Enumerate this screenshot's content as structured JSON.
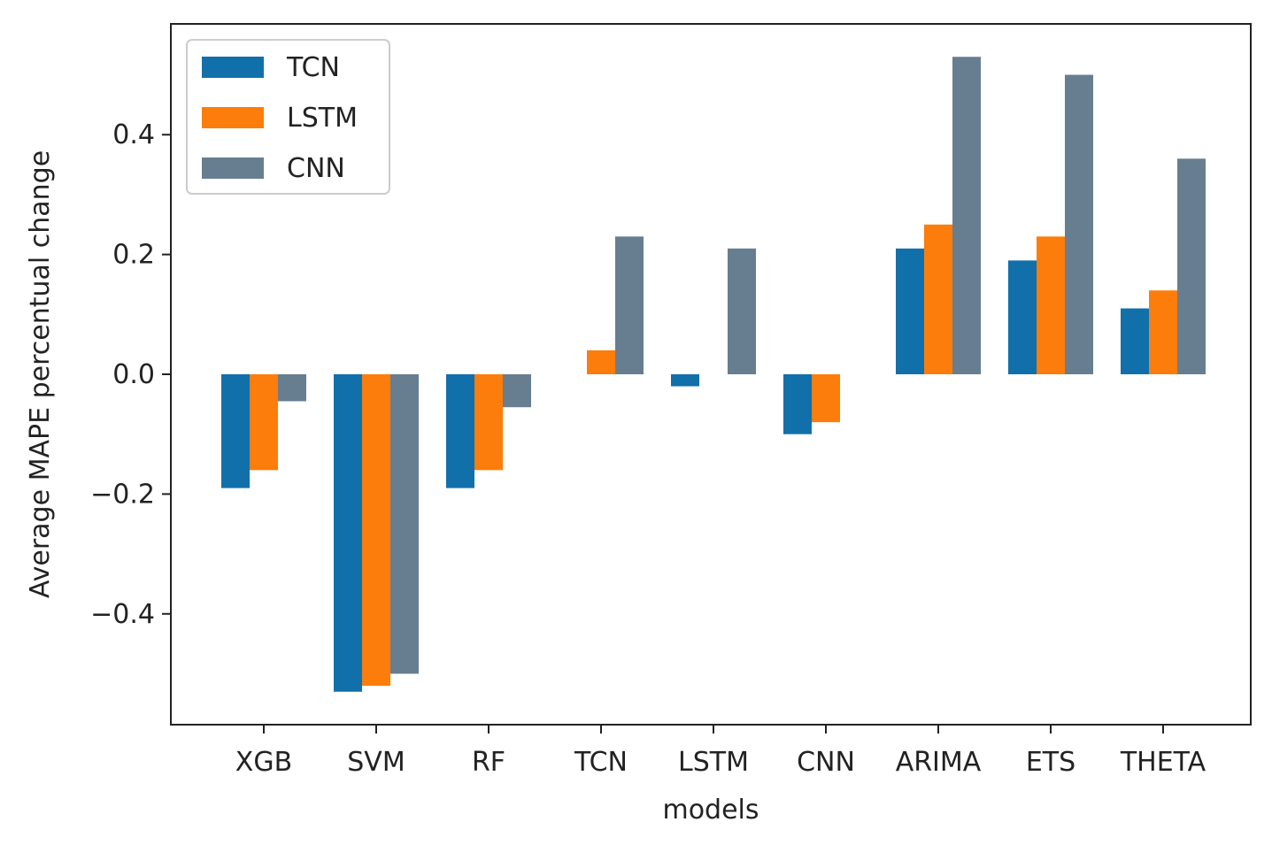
{
  "chart_data": {
    "type": "bar",
    "title": "",
    "xlabel": "models",
    "ylabel": "Average MAPE percentual change",
    "categories": [
      "XGB",
      "SVM",
      "RF",
      "TCN",
      "LSTM",
      "CNN",
      "ARIMA",
      "ETS",
      "THETA"
    ],
    "series": [
      {
        "name": "TCN",
        "color": "#1170aa",
        "values": [
          -0.19,
          -0.53,
          -0.19,
          0.0,
          -0.02,
          -0.1,
          0.21,
          0.19,
          0.11
        ]
      },
      {
        "name": "LSTM",
        "color": "#fc7d0b",
        "values": [
          -0.16,
          -0.52,
          -0.16,
          0.04,
          0.0,
          -0.08,
          0.25,
          0.23,
          0.14
        ]
      },
      {
        "name": "CNN",
        "color": "#667e90",
        "values": [
          -0.045,
          -0.5,
          -0.055,
          0.23,
          0.21,
          0.0,
          0.53,
          0.5,
          0.36
        ]
      }
    ],
    "ylim": [
      -0.585,
      0.585
    ],
    "yticks": [
      -0.4,
      -0.2,
      0.0,
      0.2,
      0.4
    ],
    "ytick_labels": [
      "−0.4",
      "−0.2",
      "0.0",
      "0.2",
      "0.4"
    ],
    "grid": false,
    "legend_position": "top-left"
  }
}
